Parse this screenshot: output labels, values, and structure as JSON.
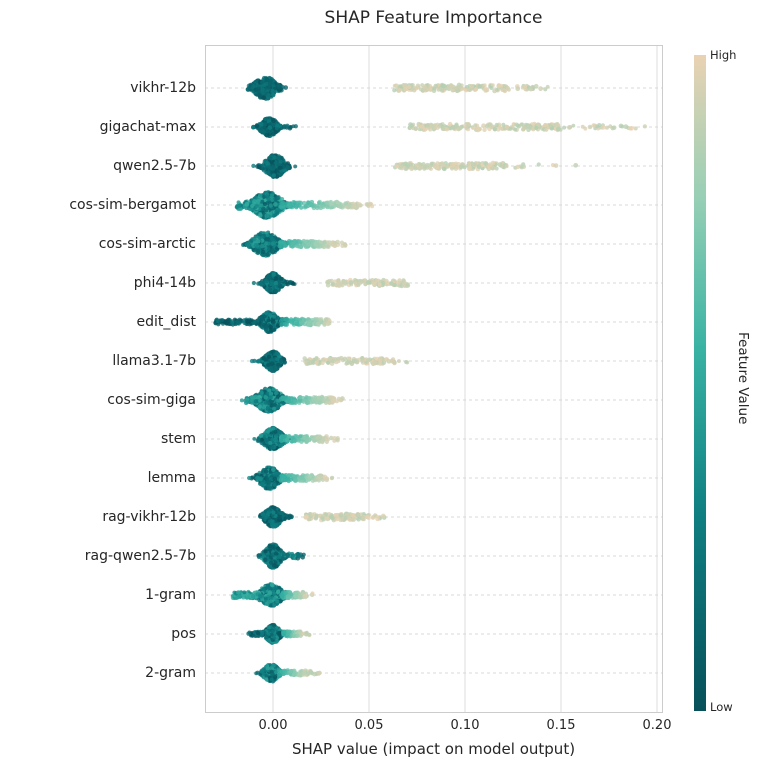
{
  "chart_data": {
    "type": "scatter",
    "variant": "shap-beeswarm",
    "title": "SHAP Feature Importance",
    "xlabel": "SHAP value (impact on model output)",
    "xlim": [
      -0.035,
      0.203
    ],
    "grid": "both",
    "x_ticks": [
      {
        "value": 0.0,
        "label": "0.00"
      },
      {
        "value": 0.05,
        "label": "0.05"
      },
      {
        "value": 0.1,
        "label": "0.10"
      },
      {
        "value": 0.15,
        "label": "0.15"
      },
      {
        "value": 0.2,
        "label": "0.20"
      }
    ],
    "colorbar": {
      "label": "Feature Value",
      "high_label": "High",
      "low_label": "Low"
    },
    "colormap": {
      "stops": [
        [
          0,
          "#07505a"
        ],
        [
          0.3,
          "#0f7f82"
        ],
        [
          0.55,
          "#38b2a3"
        ],
        [
          0.78,
          "#96cfb5"
        ],
        [
          1,
          "#e9d2b3"
        ]
      ]
    },
    "features": [
      {
        "name": "vikhr-12b",
        "cluster": {
          "center": -0.004,
          "sd": 0.004,
          "count": 350,
          "spread": 11,
          "t": [
            0,
            0.3
          ]
        },
        "bands": [
          {
            "x": [
              0.063,
              0.122
            ],
            "count": 160,
            "jitter": 3,
            "t": [
              0.85,
              1
            ]
          },
          {
            "x": [
              0.122,
              0.147
            ],
            "count": 20,
            "jitter": 2,
            "t": [
              0.85,
              1
            ]
          }
        ]
      },
      {
        "name": "gigachat-max",
        "cluster": {
          "center": -0.002,
          "sd": 0.003,
          "count": 330,
          "spread": 9,
          "t": [
            0,
            0.3
          ]
        },
        "bands": [
          {
            "x": [
              0.007,
              0.012
            ],
            "count": 6,
            "jitter": 1.5,
            "t": [
              0,
              0.2
            ]
          },
          {
            "x": [
              0.071,
              0.15
            ],
            "count": 200,
            "jitter": 3,
            "t": [
              0.85,
              1
            ]
          },
          {
            "x": [
              0.15,
              0.194
            ],
            "count": 28,
            "jitter": 2,
            "t": [
              0.85,
              1
            ]
          }
        ]
      },
      {
        "name": "qwen2.5-7b",
        "cluster": {
          "center": 0.001,
          "sd": 0.0035,
          "count": 350,
          "spread": 11,
          "t": [
            0,
            0.3
          ]
        },
        "bands": [
          {
            "x": [
              0.063,
              0.122
            ],
            "count": 170,
            "jitter": 3,
            "t": [
              0.85,
              1
            ]
          },
          {
            "x": [
              0.124,
              0.158
            ],
            "count": 10,
            "jitter": 2,
            "t": [
              0.85,
              1
            ]
          }
        ]
      },
      {
        "name": "cos-sim-bergamot",
        "cluster": {
          "center": -0.003,
          "sd": 0.005,
          "count": 380,
          "spread": 13,
          "t": [
            0.05,
            0.55
          ]
        },
        "bands": [
          {
            "x": [
              -0.019,
              -0.007
            ],
            "count": 55,
            "jitter": 4,
            "t": [
              0.25,
              0.55
            ]
          },
          {
            "x": [
              0.004,
              0.046
            ],
            "count": 130,
            "jitter": 3,
            "ramp": [
              0.5,
              0.95
            ]
          },
          {
            "x": [
              0.046,
              0.052
            ],
            "count": 6,
            "jitter": 2,
            "t": [
              0.9,
              1
            ]
          }
        ]
      },
      {
        "name": "cos-sim-arctic",
        "cluster": {
          "center": -0.004,
          "sd": 0.0045,
          "count": 360,
          "spread": 12,
          "t": [
            0.05,
            0.5
          ]
        },
        "bands": [
          {
            "x": [
              0.003,
              0.033
            ],
            "count": 115,
            "jitter": 3,
            "ramp": [
              0.5,
              0.95
            ]
          },
          {
            "x": [
              0.033,
              0.038
            ],
            "count": 8,
            "jitter": 2,
            "t": [
              0.88,
              1
            ]
          }
        ]
      },
      {
        "name": "phi4-14b",
        "cluster": {
          "center": 0.0,
          "sd": 0.0028,
          "count": 330,
          "spread": 10,
          "t": [
            0,
            0.35
          ]
        },
        "bands": [
          {
            "x": [
              0.007,
              0.012
            ],
            "count": 8,
            "jitter": 1.5,
            "t": [
              0,
              0.2
            ]
          },
          {
            "x": [
              0.028,
              0.071
            ],
            "count": 115,
            "jitter": 3,
            "t": [
              0.85,
              1
            ]
          }
        ]
      },
      {
        "name": "edit_dist",
        "cluster": {
          "center": -0.002,
          "sd": 0.003,
          "count": 300,
          "spread": 10,
          "t": [
            0,
            0.4
          ]
        },
        "bands": [
          {
            "x": [
              -0.03,
              -0.008
            ],
            "count": 85,
            "jitter": 2.5,
            "t": [
              0,
              0.25
            ]
          },
          {
            "x": [
              0.004,
              0.03
            ],
            "count": 110,
            "jitter": 3,
            "ramp": [
              0.45,
              0.95
            ]
          }
        ]
      },
      {
        "name": "llama3.1-7b",
        "cluster": {
          "center": 0.0,
          "sd": 0.0028,
          "count": 330,
          "spread": 10,
          "t": [
            0,
            0.35
          ]
        },
        "bands": [
          {
            "x": [
              0.016,
              0.058
            ],
            "count": 130,
            "jitter": 3,
            "t": [
              0.85,
              1
            ]
          },
          {
            "x": [
              0.058,
              0.07
            ],
            "count": 12,
            "jitter": 2,
            "t": [
              0.85,
              1
            ]
          }
        ]
      },
      {
        "name": "cos-sim-giga",
        "cluster": {
          "center": -0.002,
          "sd": 0.0045,
          "count": 360,
          "spread": 12,
          "t": [
            0.05,
            0.5
          ]
        },
        "bands": [
          {
            "x": [
              -0.014,
              -0.006
            ],
            "count": 30,
            "jitter": 3,
            "t": [
              0.25,
              0.55
            ]
          },
          {
            "x": [
              0.004,
              0.032
            ],
            "count": 110,
            "jitter": 3,
            "ramp": [
              0.5,
              0.95
            ]
          },
          {
            "x": [
              0.032,
              0.037
            ],
            "count": 6,
            "jitter": 2,
            "t": [
              0.9,
              1
            ]
          }
        ]
      },
      {
        "name": "stem",
        "cluster": {
          "center": 0.0,
          "sd": 0.0035,
          "count": 340,
          "spread": 11,
          "t": [
            0,
            0.45
          ]
        },
        "bands": [
          {
            "x": [
              0.004,
              0.029
            ],
            "count": 100,
            "jitter": 3,
            "ramp": [
              0.5,
              0.95
            ]
          },
          {
            "x": [
              0.029,
              0.034
            ],
            "count": 6,
            "jitter": 2,
            "t": [
              0.88,
              1
            ]
          }
        ]
      },
      {
        "name": "lemma",
        "cluster": {
          "center": -0.002,
          "sd": 0.0035,
          "count": 340,
          "spread": 11,
          "t": [
            0,
            0.45
          ]
        },
        "bands": [
          {
            "x": [
              0.004,
              0.027
            ],
            "count": 100,
            "jitter": 3,
            "ramp": [
              0.5,
              0.95
            ]
          },
          {
            "x": [
              0.027,
              0.031
            ],
            "count": 5,
            "jitter": 2,
            "t": [
              0.88,
              1
            ]
          }
        ]
      },
      {
        "name": "rag-vikhr-12b",
        "cluster": {
          "center": 0.0,
          "sd": 0.003,
          "count": 320,
          "spread": 10,
          "t": [
            0,
            0.35
          ]
        },
        "bands": [
          {
            "x": [
              0.007,
              0.011
            ],
            "count": 6,
            "jitter": 1.5,
            "t": [
              0,
              0.2
            ]
          },
          {
            "x": [
              0.017,
              0.05
            ],
            "count": 115,
            "jitter": 3,
            "t": [
              0.85,
              1
            ]
          },
          {
            "x": [
              0.05,
              0.06
            ],
            "count": 10,
            "jitter": 2,
            "t": [
              0.85,
              1
            ]
          }
        ]
      },
      {
        "name": "rag-qwen2.5-7b",
        "cluster": {
          "center": 0.0,
          "sd": 0.0028,
          "count": 340,
          "spread": 12,
          "t": [
            0,
            0.4
          ]
        },
        "bands": [
          {
            "x": [
              0.005,
              0.013
            ],
            "count": 30,
            "jitter": 2.5,
            "t": [
              0.1,
              0.5
            ]
          },
          {
            "x": [
              0.013,
              0.017
            ],
            "count": 5,
            "jitter": 1.5,
            "t": [
              0,
              0.25
            ]
          }
        ]
      },
      {
        "name": "1-gram",
        "cluster": {
          "center": -0.001,
          "sd": 0.004,
          "count": 360,
          "spread": 11,
          "t": [
            0.1,
            0.55
          ]
        },
        "bands": [
          {
            "x": [
              -0.021,
              -0.006
            ],
            "count": 75,
            "jitter": 3,
            "t": [
              0.3,
              0.6
            ]
          },
          {
            "x": [
              0.004,
              0.016
            ],
            "count": 70,
            "jitter": 3,
            "ramp": [
              0.5,
              0.9
            ]
          },
          {
            "x": [
              0.016,
              0.021
            ],
            "count": 8,
            "jitter": 2,
            "t": [
              0.85,
              1
            ]
          }
        ]
      },
      {
        "name": "pos",
        "cluster": {
          "center": 0.0,
          "sd": 0.0025,
          "count": 280,
          "spread": 9,
          "t": [
            0,
            0.45
          ]
        },
        "bands": [
          {
            "x": [
              -0.013,
              -0.005
            ],
            "count": 35,
            "jitter": 2.2,
            "t": [
              0,
              0.3
            ]
          },
          {
            "x": [
              0.005,
              0.015
            ],
            "count": 55,
            "jitter": 2.5,
            "ramp": [
              0.5,
              0.9
            ]
          },
          {
            "x": [
              0.015,
              0.019
            ],
            "count": 8,
            "jitter": 2,
            "t": [
              0.85,
              1
            ]
          }
        ]
      },
      {
        "name": "2-gram",
        "cluster": {
          "center": -0.001,
          "sd": 0.0025,
          "count": 280,
          "spread": 9,
          "t": [
            0.05,
            0.5
          ]
        },
        "bands": [
          {
            "x": [
              0.003,
              0.018
            ],
            "count": 60,
            "jitter": 2.5,
            "ramp": [
              0.5,
              0.95
            ]
          },
          {
            "x": [
              0.018,
              0.026
            ],
            "count": 14,
            "jitter": 2,
            "t": [
              0.85,
              1
            ]
          }
        ]
      }
    ]
  }
}
